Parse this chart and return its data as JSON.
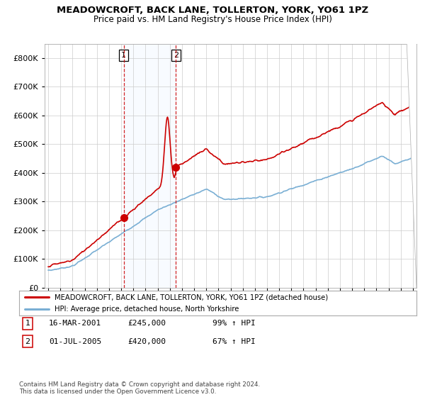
{
  "title": "MEADOWCROFT, BACK LANE, TOLLERTON, YORK, YO61 1PZ",
  "subtitle": "Price paid vs. HM Land Registry's House Price Index (HPI)",
  "legend_label_red": "MEADOWCROFT, BACK LANE, TOLLERTON, YORK, YO61 1PZ (detached house)",
  "legend_label_blue": "HPI: Average price, detached house, North Yorkshire",
  "transactions": [
    {
      "num": 1,
      "date": "16-MAR-2001",
      "price": "£245,000",
      "pct": "99% ↑ HPI",
      "year": 2001.21
    },
    {
      "num": 2,
      "date": "01-JUL-2005",
      "price": "£420,000",
      "pct": "67% ↑ HPI",
      "year": 2005.5
    }
  ],
  "footer": "Contains HM Land Registry data © Crown copyright and database right 2024.\nThis data is licensed under the Open Government Licence v3.0.",
  "red_color": "#cc0000",
  "blue_color": "#7aafd4",
  "shade_color": "#ddeeff",
  "dashed_color": "#cc0000",
  "background_color": "#ffffff",
  "grid_color": "#cccccc",
  "ylim": [
    0,
    850000
  ],
  "xlim_start": 1994.7,
  "xlim_end": 2025.3,
  "sale1_year": 2001.21,
  "sale1_price": 245000,
  "sale2_year": 2005.5,
  "sale2_price": 420000
}
